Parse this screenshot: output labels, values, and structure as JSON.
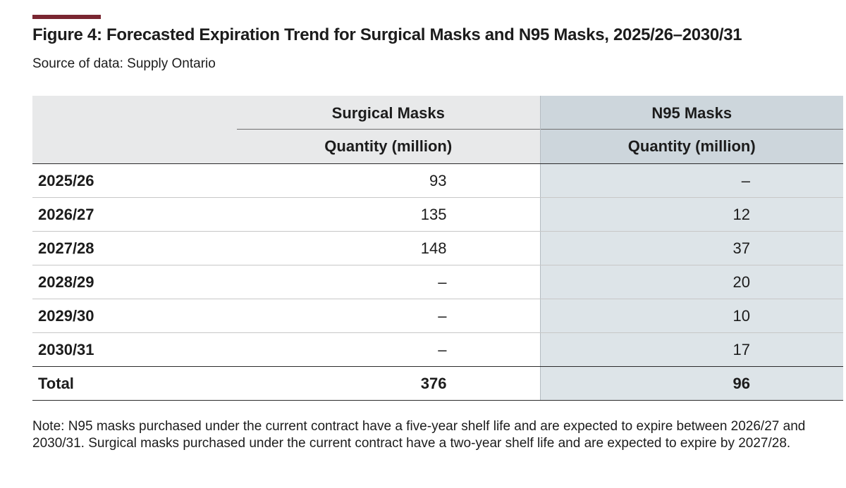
{
  "figure": {
    "title": "Figure 4:  Forecasted Expiration Trend for Surgical Masks and N95 Masks, 2025/26–2030/31",
    "source": "Source of data: Supply Ontario",
    "note": "Note: N95 masks purchased under the current contract have a five-year shelf life and are expected to expire between 2026/27 and 2030/31. Surgical masks purchased under the current contract have a two-year shelf life and are expected to expire by 2027/28.",
    "accent_color": "#7a2631"
  },
  "table": {
    "columns": [
      {
        "group": "Surgical Masks",
        "unit": "Quantity (million)"
      },
      {
        "group": "N95 Masks",
        "unit": "Quantity (million)"
      }
    ],
    "rows": [
      {
        "year": "2025/26",
        "surgical": "93",
        "n95": "–"
      },
      {
        "year": "2026/27",
        "surgical": "135",
        "n95": "12"
      },
      {
        "year": "2027/28",
        "surgical": "148",
        "n95": "37"
      },
      {
        "year": "2028/29",
        "surgical": "–",
        "n95": "20"
      },
      {
        "year": "2029/30",
        "surgical": "–",
        "n95": "10"
      },
      {
        "year": "2030/31",
        "surgical": "–",
        "n95": "17"
      }
    ],
    "total": {
      "label": "Total",
      "surgical": "376",
      "n95": "96"
    }
  }
}
